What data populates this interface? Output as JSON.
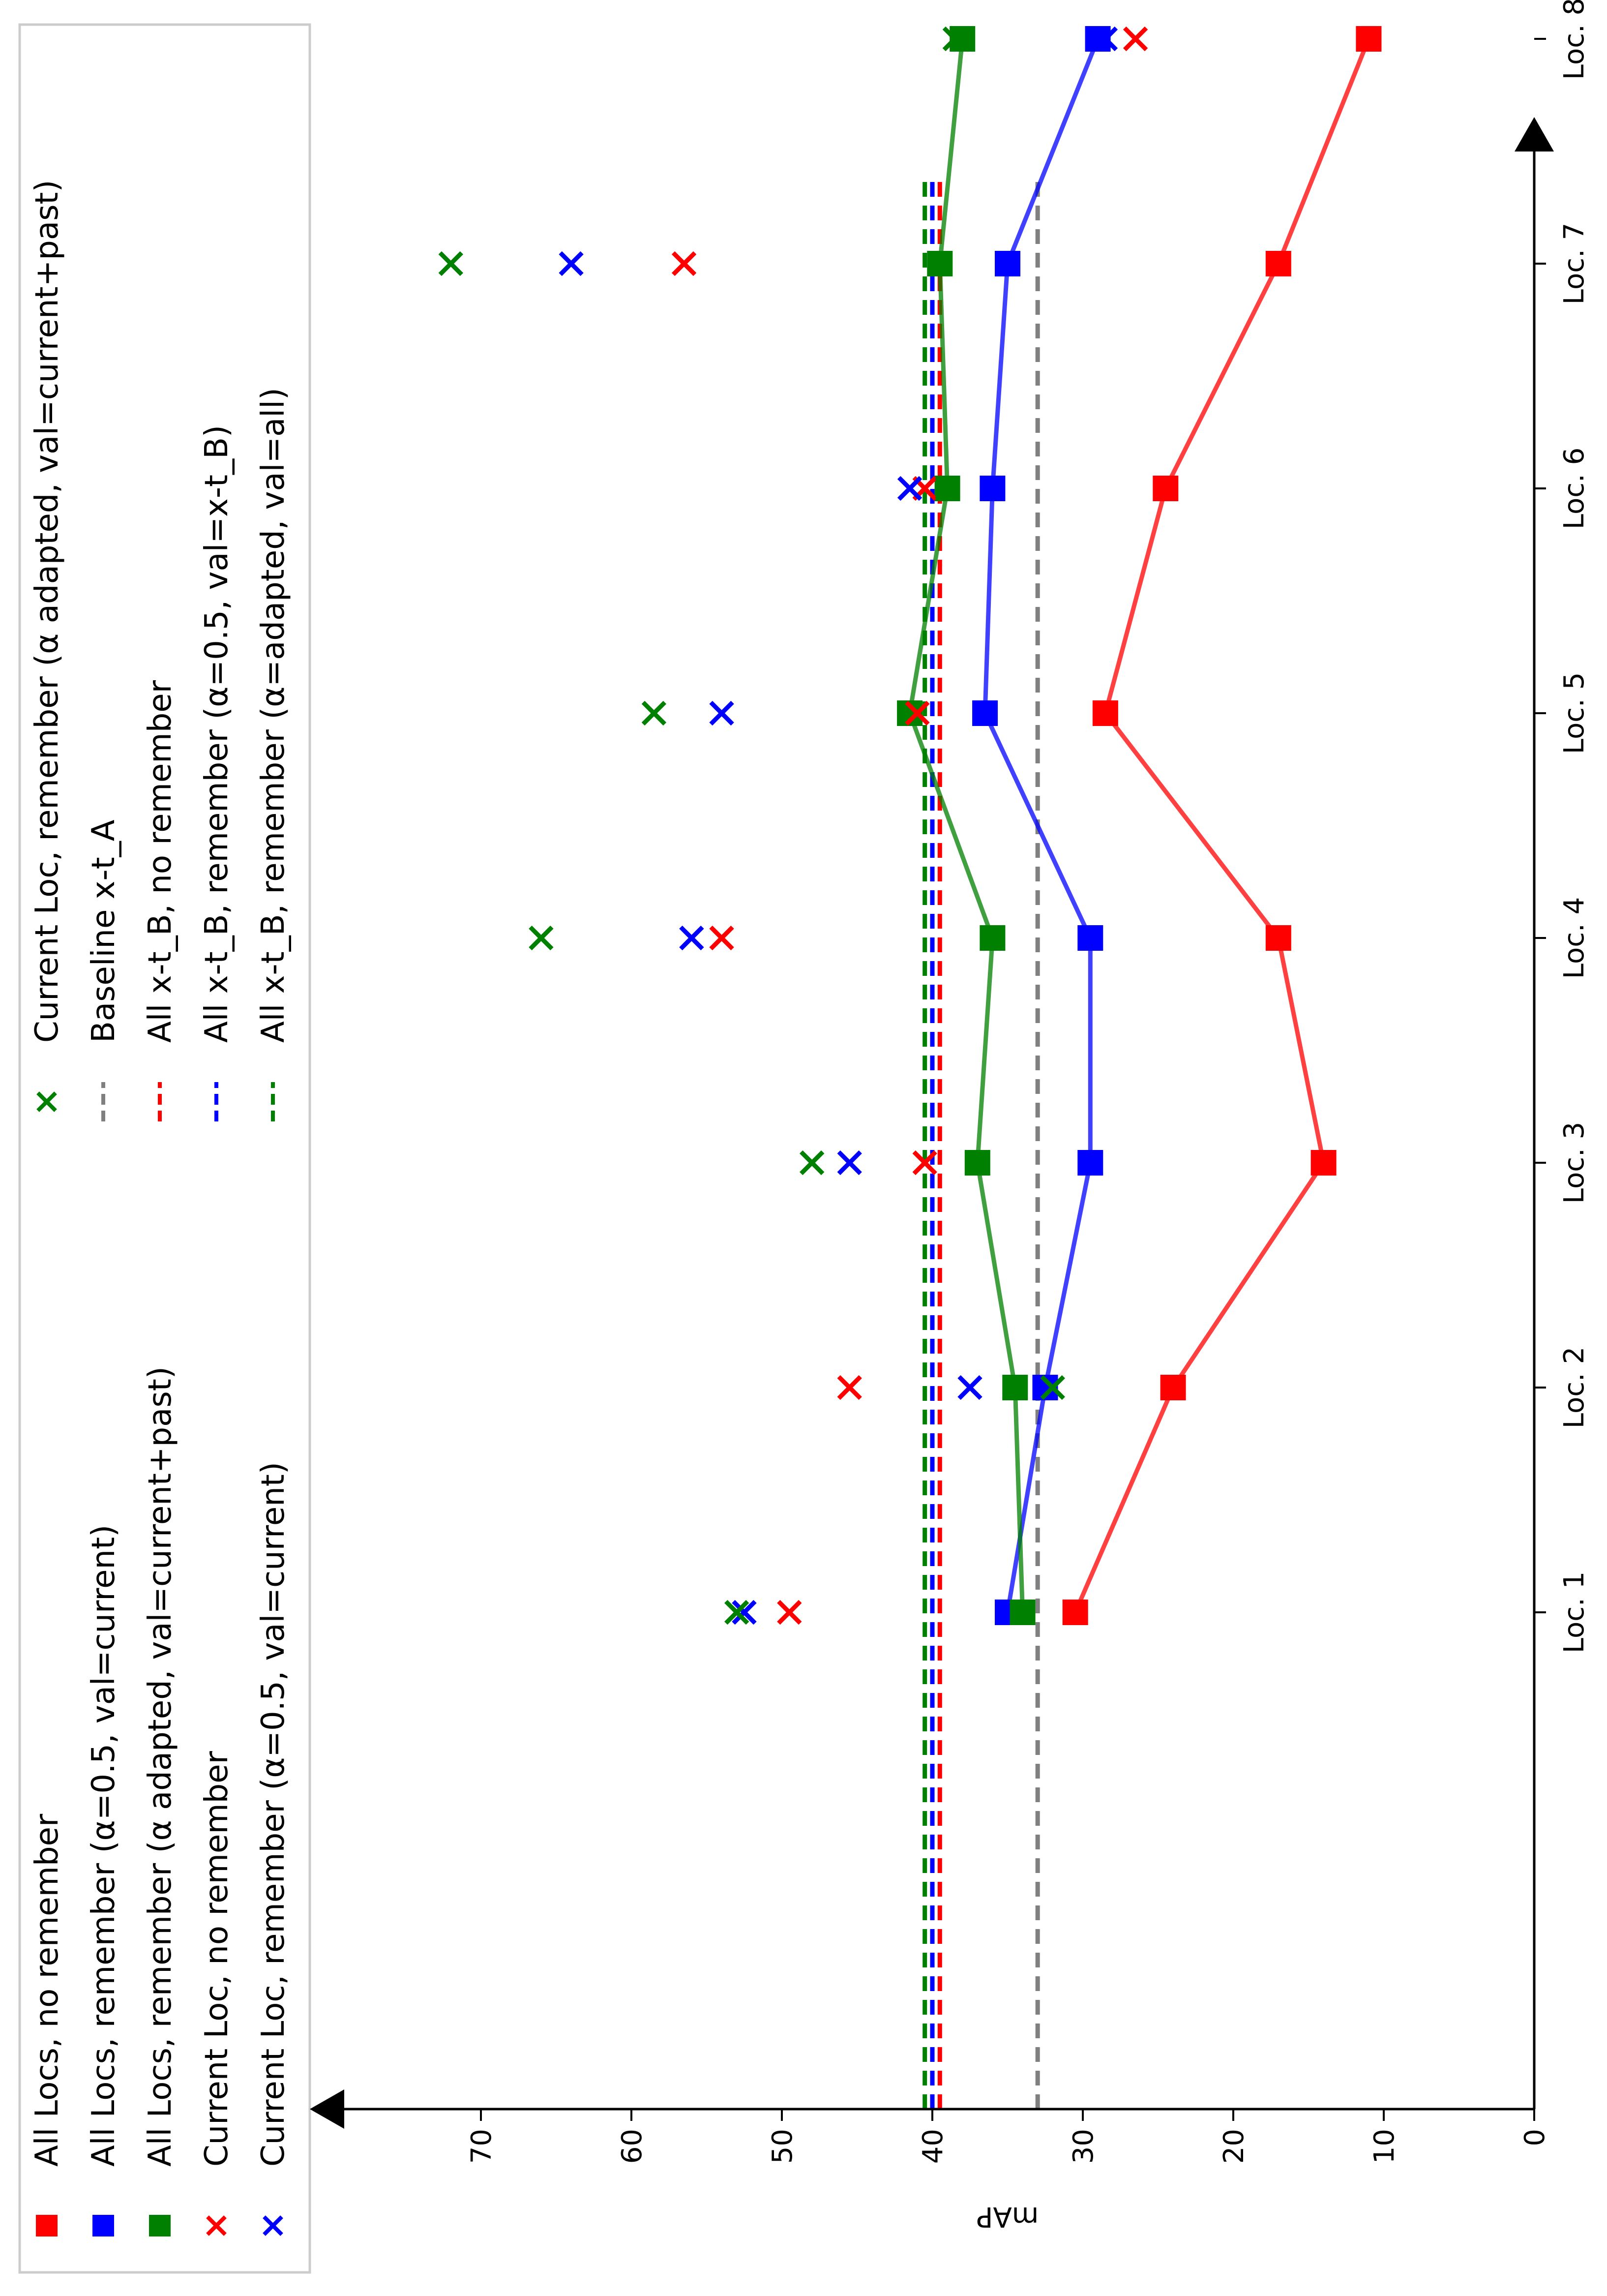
{
  "colors": {
    "red": "#ff0000",
    "blue": "#0000ff",
    "green": "#008000",
    "gray": "#808080"
  },
  "chart_data": {
    "type": "line",
    "orientation": "rotated 90° counter-clockwise",
    "xlabel": "",
    "ylabel": "mAP",
    "ylim": [
      0,
      78
    ],
    "y_ticks": [
      0,
      10,
      20,
      30,
      40,
      50,
      60,
      70
    ],
    "categories": [
      "Loc. 1",
      "Loc. 2",
      "Loc. 3",
      "Loc. 4",
      "Loc. 5",
      "Loc. 6",
      "Loc. 7",
      "Loc. 8"
    ],
    "legend_position": "left (above the rotated plot)",
    "line_series": [
      {
        "name": "All Locs, no remember",
        "color": "red",
        "values": [
          30.5,
          24.0,
          14.0,
          17.0,
          28.5,
          24.5,
          17.0,
          11.0
        ]
      },
      {
        "name": "All Locs, remember (α=0.5, val=current)",
        "color": "blue",
        "values": [
          35.0,
          32.5,
          29.5,
          29.5,
          36.5,
          36.0,
          35.0,
          29.0
        ]
      },
      {
        "name": "All Locs, remember (α adapted, val=current+past)",
        "color": "green",
        "values": [
          34.0,
          34.5,
          37.0,
          36.0,
          41.5,
          39.0,
          39.5,
          38.0
        ]
      }
    ],
    "x_series": [
      {
        "name": "Current Loc, no remember",
        "color": "red",
        "values": [
          49.5,
          45.5,
          40.5,
          54.0,
          41.0,
          40.5,
          56.5,
          26.5
        ]
      },
      {
        "name": "Current Loc, remember (α=0.5, val=current)",
        "color": "blue",
        "values": [
          52.5,
          37.5,
          45.5,
          56.0,
          54.0,
          41.5,
          64.0,
          28.5
        ]
      },
      {
        "name": "Current Loc, remember (α adapted, val=current+past)",
        "color": "green",
        "values": [
          53.0,
          32.0,
          48.0,
          66.0,
          58.5,
          39.0,
          72.0,
          38.5
        ]
      }
    ],
    "baselines": [
      {
        "name": "Baseline x-t_A",
        "color": "gray",
        "value": 33.0
      },
      {
        "name": "All x-t_B, no remember",
        "color": "red",
        "value": 39.5
      },
      {
        "name": "All x-t_B, remember (α=0.5, val=x-t_B)",
        "color": "blue",
        "value": 40.0
      },
      {
        "name": "All x-t_B, remember (α=adapted, val=all)",
        "color": "green",
        "value": 40.5
      }
    ]
  }
}
